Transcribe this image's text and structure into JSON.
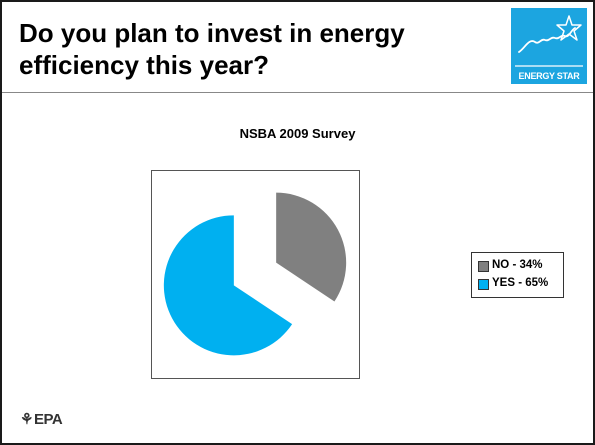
{
  "slide": {
    "title": "Do you plan to invest in energy efficiency this year?",
    "footer_logo": "EPA",
    "footer_logo_mark": "⚘"
  },
  "logo": {
    "script": "energy",
    "label": "ENERGY STAR",
    "color": "#1ca5e0"
  },
  "chart_data": {
    "type": "pie",
    "title": "NSBA 2009 Survey",
    "series": [
      {
        "name": "NO - 34%",
        "value": 34,
        "color": "#808080"
      },
      {
        "name": "YES - 65%",
        "value": 65,
        "color": "#00b0f0"
      }
    ],
    "legend": "right",
    "exploded": true
  }
}
